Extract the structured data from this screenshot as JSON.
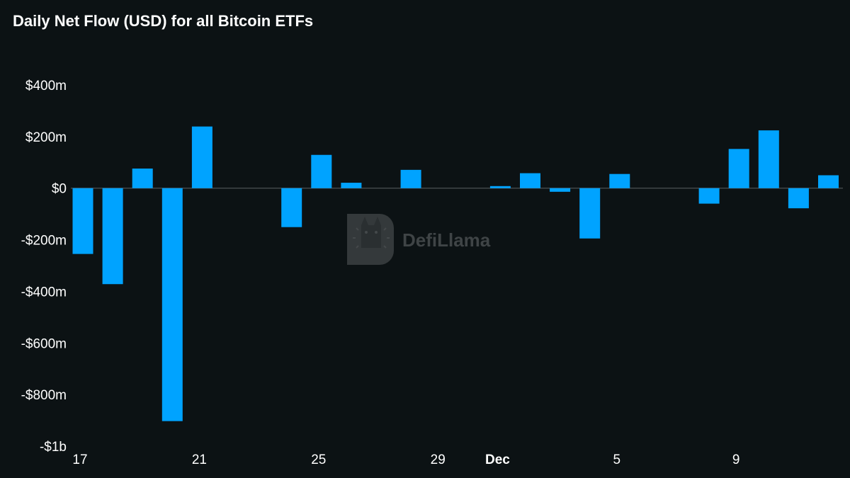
{
  "chart_data": {
    "type": "bar",
    "title": "Daily Net Flow (USD) for all Bitcoin ETFs",
    "xlabel": "",
    "ylabel": "",
    "ylim": [
      -1000,
      400
    ],
    "y_unit": "USD millions",
    "yticks": [
      {
        "value": 400,
        "label": "$400m"
      },
      {
        "value": 200,
        "label": "$200m"
      },
      {
        "value": 0,
        "label": "$0"
      },
      {
        "value": -200,
        "label": "-$200m"
      },
      {
        "value": -400,
        "label": "-$400m"
      },
      {
        "value": -600,
        "label": "-$600m"
      },
      {
        "value": -800,
        "label": "-$800m"
      },
      {
        "value": -1000,
        "label": "-$1b"
      }
    ],
    "xticks": [
      {
        "day": 0,
        "label": "17",
        "bold": false
      },
      {
        "day": 4,
        "label": "21",
        "bold": false
      },
      {
        "day": 8,
        "label": "25",
        "bold": false
      },
      {
        "day": 12,
        "label": "29",
        "bold": false
      },
      {
        "day": 14,
        "label": "Dec",
        "bold": true
      },
      {
        "day": 18,
        "label": "5",
        "bold": false
      },
      {
        "day": 22,
        "label": "9",
        "bold": false
      }
    ],
    "series": [
      {
        "name": "Daily Net Flow",
        "color": "#00a3ff",
        "points": [
          {
            "day": 0,
            "date": "Nov 17",
            "value": -255
          },
          {
            "day": 1,
            "date": "Nov 18",
            "value": -372
          },
          {
            "day": 2,
            "date": "Nov 19",
            "value": 76
          },
          {
            "day": 3,
            "date": "Nov 20",
            "value": -903
          },
          {
            "day": 4,
            "date": "Nov 21",
            "value": 239
          },
          {
            "day": 7,
            "date": "Nov 24",
            "value": -151
          },
          {
            "day": 8,
            "date": "Nov 25",
            "value": 129
          },
          {
            "day": 9,
            "date": "Nov 26",
            "value": 21
          },
          {
            "day": 11,
            "date": "Nov 28",
            "value": 71
          },
          {
            "day": 14,
            "date": "Dec 1",
            "value": 8
          },
          {
            "day": 15,
            "date": "Dec 2",
            "value": 58
          },
          {
            "day": 16,
            "date": "Dec 3",
            "value": -14
          },
          {
            "day": 17,
            "date": "Dec 4",
            "value": -195
          },
          {
            "day": 18,
            "date": "Dec 5",
            "value": 55
          },
          {
            "day": 21,
            "date": "Dec 8",
            "value": -60
          },
          {
            "day": 22,
            "date": "Dec 9",
            "value": 152
          },
          {
            "day": 23,
            "date": "Dec 10",
            "value": 224
          },
          {
            "day": 24,
            "date": "Dec 11",
            "value": -78
          },
          {
            "day": 25,
            "date": "Dec 12",
            "value": 50
          }
        ]
      }
    ]
  },
  "watermark": {
    "text": "DefiLlama"
  },
  "colors": {
    "background": "#0c1214",
    "bar": "#00a3ff",
    "zero_line": "#5a6062",
    "watermark": "#3f4446"
  }
}
